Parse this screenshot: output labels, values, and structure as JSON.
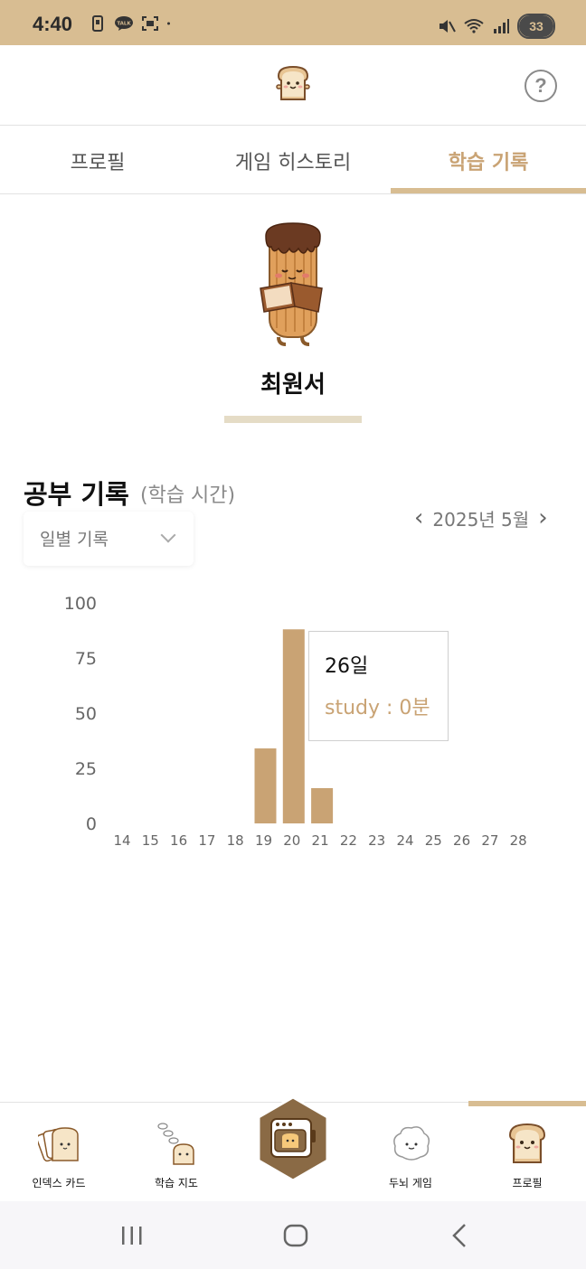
{
  "status_bar": {
    "time": "4:40",
    "battery": "33",
    "background": "#d8bd92"
  },
  "header": {
    "logo_icon": "toast-icon",
    "help_label": "?"
  },
  "tabs": [
    {
      "label": "프로필",
      "active": false
    },
    {
      "label": "게임 히스토리",
      "active": false
    },
    {
      "label": "학습 기록",
      "active": true
    }
  ],
  "profile": {
    "username": "최원서",
    "avatar_icon": "churro-reading-book-avatar"
  },
  "study": {
    "title": "공부 기록",
    "subtitle": "(학습 시간)",
    "filter_value": "일별 기록",
    "month_label": "2025년 5월"
  },
  "chart_data": {
    "type": "bar",
    "categories": [
      "14",
      "15",
      "16",
      "17",
      "18",
      "19",
      "20",
      "21",
      "22",
      "23",
      "24",
      "25",
      "26",
      "27",
      "28"
    ],
    "series": [
      {
        "values": [
          0,
          0,
          0,
          0,
          0,
          34,
          88,
          16,
          0,
          0,
          0,
          0,
          0,
          0,
          0
        ]
      }
    ],
    "y_ticks": [
      "100",
      "75",
      "50",
      "25",
      "0"
    ],
    "ylim": [
      0,
      100
    ],
    "color": "#c9a374",
    "grid": false,
    "tooltip": {
      "date": "26일",
      "value": "study : 0분"
    }
  },
  "bottom_nav": [
    {
      "label": "인덱스 카드",
      "icon": "toast-cards-icon"
    },
    {
      "label": "학습 지도",
      "icon": "toast-map-icon"
    },
    {
      "label": "",
      "icon": "toaster-oven-icon"
    },
    {
      "label": "두뇌 게임",
      "icon": "brain-icon"
    },
    {
      "label": "프로필",
      "icon": "toast-profile-icon"
    }
  ],
  "colors": {
    "accent": "#d8bd92",
    "accent_text": "#c9a374",
    "bar": "#c9a374"
  }
}
